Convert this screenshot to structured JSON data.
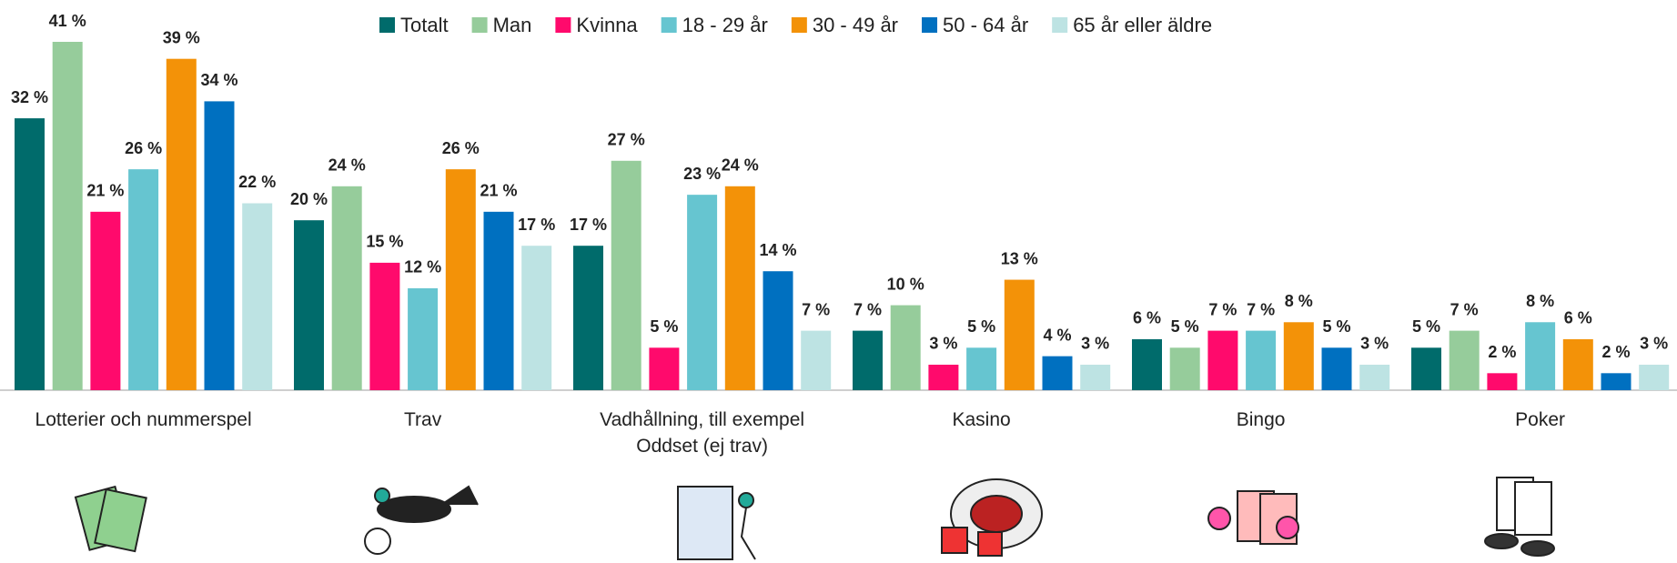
{
  "chart_data": {
    "type": "bar",
    "categories": [
      "Lotterier och nummerspel",
      "Trav",
      "Vadhållning, till exempel Oddset (ej trav)",
      "Kasino",
      "Bingo",
      "Poker"
    ],
    "series": [
      {
        "name": "Totalt",
        "color": "#006b6b",
        "values": [
          32,
          20,
          17,
          7,
          6,
          5
        ],
        "value_labels": [
          "32 %",
          "20 %",
          "17 %",
          "7 %",
          "6 %",
          "5 %"
        ]
      },
      {
        "name": "Man",
        "color": "#96cc9b",
        "values": [
          41,
          24,
          27,
          10,
          5,
          7
        ],
        "value_labels": [
          "41 %",
          "24 %",
          "27 %",
          "10 %",
          "5 %",
          "7 %"
        ]
      },
      {
        "name": "Kvinna",
        "color": "#ff0a6c",
        "values": [
          21,
          15,
          5,
          3,
          7,
          2
        ],
        "value_labels": [
          "21 %",
          "15 %",
          "5 %",
          "3 %",
          "7 %",
          "2 %"
        ]
      },
      {
        "name": "18 - 29 år",
        "color": "#66c5d0",
        "values": [
          26,
          12,
          23,
          5,
          7,
          8
        ],
        "value_labels": [
          "26 %",
          "12 %",
          "23 %",
          "5 %",
          "7 %",
          "8 %"
        ]
      },
      {
        "name": "30 - 49 år",
        "color": "#f39208",
        "values": [
          39,
          26,
          24,
          13,
          8,
          6
        ],
        "value_labels": [
          "39 %",
          "26 %",
          "24 %",
          "13 %",
          "8 %",
          "6 %"
        ]
      },
      {
        "name": "50 - 64 år",
        "color": "#0070c0",
        "values": [
          34,
          21,
          14,
          4,
          5,
          2
        ],
        "value_labels": [
          "34 %",
          "21 %",
          "14 %",
          "4 %",
          "5 %",
          "2 %"
        ]
      },
      {
        "name": "65 år eller äldre",
        "color": "#bde3e3",
        "values": [
          22,
          17,
          7,
          3,
          3,
          3
        ],
        "value_labels": [
          "22 %",
          "17 %",
          "7 %",
          "3 %",
          "3 %",
          "3 %"
        ]
      }
    ]
  }
}
